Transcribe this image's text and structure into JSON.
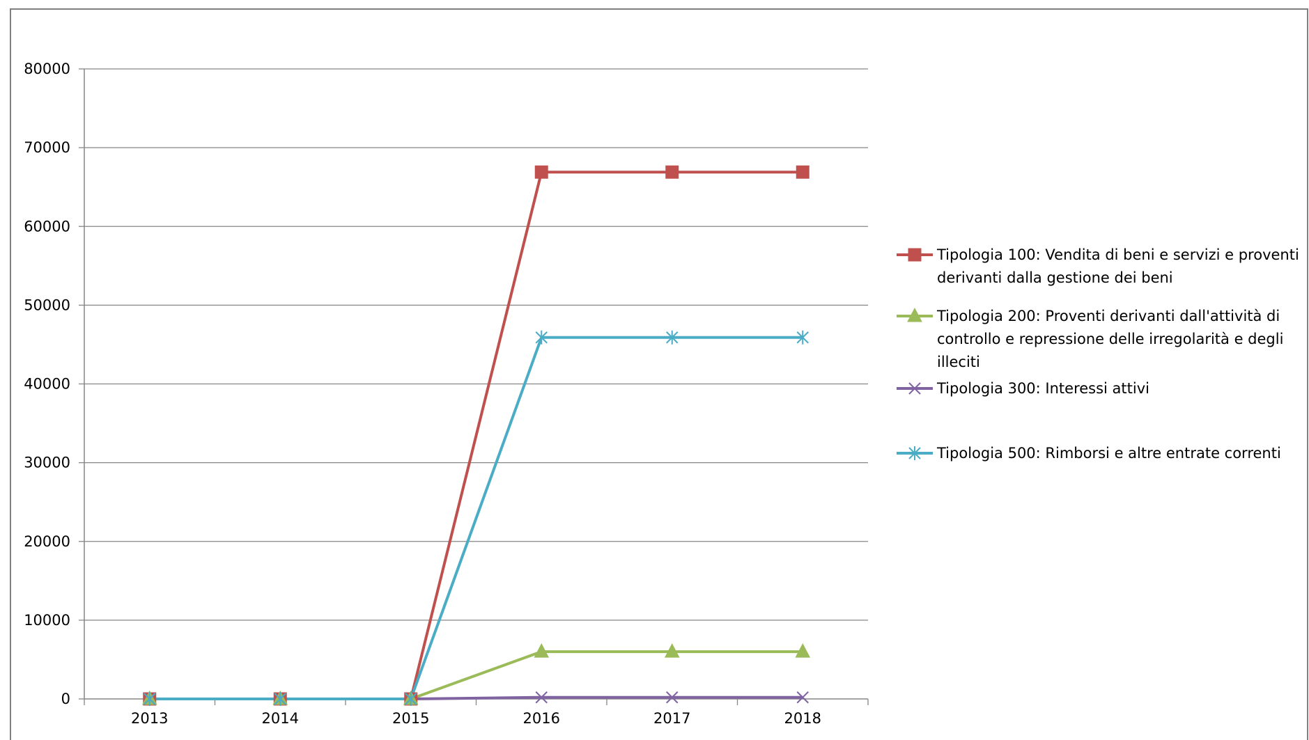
{
  "chart_data": {
    "type": "line",
    "title": "",
    "xlabel": "",
    "ylabel": "",
    "categories": [
      "2013",
      "2014",
      "2015",
      "2016",
      "2017",
      "2018"
    ],
    "ylim": [
      0,
      80000
    ],
    "yticks": [
      "0",
      "10000",
      "20000",
      "30000",
      "40000",
      "50000",
      "60000",
      "70000",
      "80000"
    ],
    "ytick_values": [
      0,
      10000,
      20000,
      30000,
      40000,
      50000,
      60000,
      70000,
      80000
    ],
    "grid": "horizontal",
    "legend_position": "right",
    "series": [
      {
        "name": "Tipologia 100: Vendita di beni e servizi e proventi derivanti dalla gestione dei beni",
        "color": "#c0504d",
        "marker": "square",
        "values": [
          0,
          0,
          0,
          66900,
          66900,
          66900
        ]
      },
      {
        "name": "Tipologia 200: Proventi derivanti dall'attività di controllo e repressione delle irregolarità e degli illeciti",
        "color": "#9bbb59",
        "marker": "triangle",
        "values": [
          0,
          0,
          0,
          6000,
          6000,
          6000
        ]
      },
      {
        "name": "Tipologia 300: Interessi attivi",
        "color": "#8064a2",
        "marker": "x",
        "values": [
          0,
          0,
          0,
          200,
          200,
          200
        ]
      },
      {
        "name": "Tipologia 500: Rimborsi e altre entrate correnti",
        "color": "#4bacc6",
        "marker": "star",
        "values": [
          0,
          0,
          0,
          45900,
          45900,
          45900
        ]
      }
    ]
  }
}
